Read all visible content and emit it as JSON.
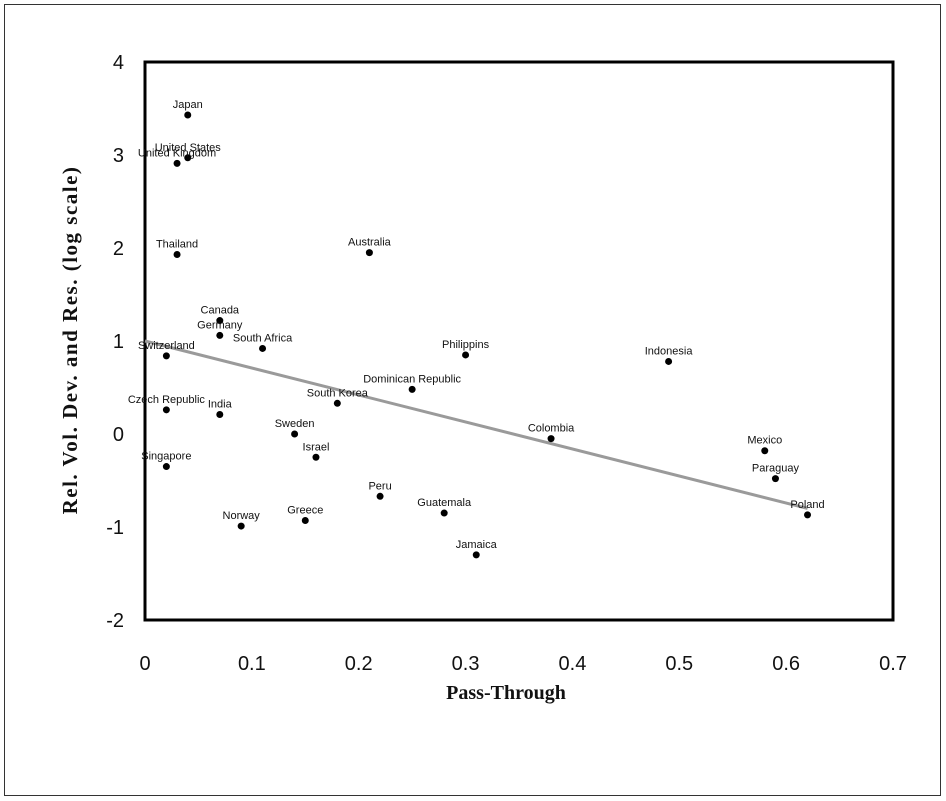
{
  "chart_data": {
    "type": "scatter",
    "xlabel": "Pass-Through",
    "ylabel": "Rel. Vol. Dev. and Res. (log scale)",
    "xlim": [
      0,
      0.7
    ],
    "ylim": [
      -2,
      4
    ],
    "xticks": [
      "0",
      "0.1",
      "0.2",
      "0.3",
      "0.4",
      "0.5",
      "0.6",
      "0.7"
    ],
    "yticks": [
      "-2",
      "-1",
      "0",
      "1",
      "2",
      "3",
      "4"
    ],
    "grid": false,
    "points": [
      {
        "label": "Japan",
        "x": 0.04,
        "y": 3.43
      },
      {
        "label": "United States",
        "x": 0.04,
        "y": 2.97
      },
      {
        "label": "United Kingdom",
        "x": 0.03,
        "y": 2.91
      },
      {
        "label": "Thailand",
        "x": 0.03,
        "y": 1.93
      },
      {
        "label": "Australia",
        "x": 0.21,
        "y": 1.95
      },
      {
        "label": "Canada",
        "x": 0.07,
        "y": 1.22
      },
      {
        "label": "Germany",
        "x": 0.07,
        "y": 1.06
      },
      {
        "label": "South Africa",
        "x": 0.11,
        "y": 0.92
      },
      {
        "label": "Switzerland",
        "x": 0.02,
        "y": 0.84
      },
      {
        "label": "Philippins",
        "x": 0.3,
        "y": 0.85
      },
      {
        "label": "Indonesia",
        "x": 0.49,
        "y": 0.78
      },
      {
        "label": "Dominican Republic",
        "x": 0.25,
        "y": 0.48
      },
      {
        "label": "Czech Republic",
        "x": 0.02,
        "y": 0.26
      },
      {
        "label": "India",
        "x": 0.07,
        "y": 0.21
      },
      {
        "label": "South Korea",
        "x": 0.18,
        "y": 0.33
      },
      {
        "label": "Sweden",
        "x": 0.14,
        "y": 0.0
      },
      {
        "label": "Colombia",
        "x": 0.38,
        "y": -0.05
      },
      {
        "label": "Israel",
        "x": 0.16,
        "y": -0.25
      },
      {
        "label": "Singapore",
        "x": 0.02,
        "y": -0.35
      },
      {
        "label": "Mexico",
        "x": 0.58,
        "y": -0.18
      },
      {
        "label": "Paraguay",
        "x": 0.59,
        "y": -0.48
      },
      {
        "label": "Peru",
        "x": 0.22,
        "y": -0.67
      },
      {
        "label": "Poland",
        "x": 0.62,
        "y": -0.87
      },
      {
        "label": "Guatemala",
        "x": 0.28,
        "y": -0.85
      },
      {
        "label": "Greece",
        "x": 0.15,
        "y": -0.93
      },
      {
        "label": "Norway",
        "x": 0.09,
        "y": -0.99
      },
      {
        "label": "Jamaica",
        "x": 0.31,
        "y": -1.3
      }
    ],
    "fit_line": {
      "x": [
        0.0,
        0.62
      ],
      "y": [
        1.0,
        -0.8
      ]
    }
  }
}
